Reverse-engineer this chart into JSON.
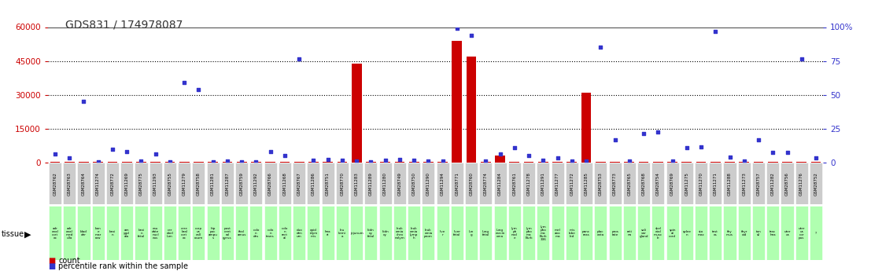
{
  "title": "GDS831 / 174978087",
  "samples": [
    "GSM28762",
    "GSM28763",
    "GSM28764",
    "GSM11274",
    "GSM28772",
    "GSM11269",
    "GSM28775",
    "GSM11293",
    "GSM28755",
    "GSM11279",
    "GSM28758",
    "GSM11281",
    "GSM11287",
    "GSM28759",
    "GSM11292",
    "GSM28766",
    "GSM11268",
    "GSM28767",
    "GSM11286",
    "GSM28751",
    "GSM28770",
    "GSM11283",
    "GSM11289",
    "GSM11280",
    "GSM28749",
    "GSM28750",
    "GSM11290",
    "GSM11294",
    "GSM28771",
    "GSM28760",
    "GSM28774",
    "GSM11284",
    "GSM28761",
    "GSM11278",
    "GSM11291",
    "GSM11277",
    "GSM11272",
    "GSM11285",
    "GSM28753",
    "GSM28773",
    "GSM28765",
    "GSM28768",
    "GSM28754",
    "GSM28769",
    "GSM11275",
    "GSM11270",
    "GSM11271",
    "GSM11288",
    "GSM11273",
    "GSM28757",
    "GSM11282",
    "GSM28756",
    "GSM11276",
    "GSM28752"
  ],
  "tissues": [
    "adr\nenal\ncort\nex",
    "adr\nenal\nmed\nulla",
    "blad\nder",
    "bon\ne\nmar\nrow",
    "brai\nn",
    "am\nygd\nala",
    "brai\nn\nfetal",
    "cau\ndate\nnucl\neus",
    "cer\nebel\nlum",
    "cere\nbral\ncort\nex",
    "corp\nus\ncall\nosum",
    "hip\npoc\nampu\ns",
    "post\ncent\nral\ngyrus",
    "thal\namus",
    "colo\nn\ndes",
    "colo\nn\ntrans",
    "colo\nn\nrect\nal",
    "duo\nden\num",
    "epid\nidym\nmis",
    "hea\nrt",
    "leu\nkemi\na",
    "jejunum",
    "kidn\ney\nfetal",
    "kidn\ney",
    "leuk\nemia\nchro\nnolym",
    "leuk\nemia\nlymp\nh",
    "leuk\nemia\nprom",
    "live\nr",
    "liver\nfetal",
    "lun\ng",
    "lung\nfetal",
    "lung\ncarcin\noma",
    "lym\nph\nnod\ne",
    "lym\npho\nma\nBurk",
    "lym\npho\nma\nBurk\n336",
    "mel\nano\nma",
    "mis\nlabe\nled",
    "panc\nreas",
    "plac\nenta",
    "pros\ntate",
    "reti\nna",
    "sali\nvar\ngland",
    "skel\netal\nmusc\nle",
    "spin\nal\ncord",
    "splee\nn",
    "sto\nmac",
    "test\nes",
    "thy\nmus",
    "thyr\noid",
    "ton\nsil",
    "trac\nhea",
    "uter\nus",
    "uter\nus\ncor\npus",
    "?"
  ],
  "counts": [
    200,
    200,
    200,
    200,
    200,
    200,
    200,
    200,
    200,
    200,
    200,
    200,
    200,
    200,
    200,
    200,
    200,
    200,
    200,
    200,
    200,
    44000,
    200,
    200,
    200,
    200,
    200,
    200,
    54000,
    47000,
    200,
    3000,
    200,
    200,
    200,
    200,
    200,
    31000,
    200,
    200,
    200,
    200,
    200,
    200,
    200,
    200,
    200,
    200,
    200,
    200,
    200,
    200,
    200,
    200
  ],
  "pct_raw": [
    4000,
    2000,
    27000,
    500,
    6000,
    5000,
    800,
    4000,
    200,
    35500,
    32500,
    400,
    600,
    400,
    500,
    4800,
    3200,
    46000,
    1000,
    1500,
    1000,
    600,
    400,
    1000,
    1400,
    1000,
    800,
    600,
    59500,
    56500,
    600,
    4000,
    6500,
    3200,
    1200,
    2000,
    800,
    700,
    51000,
    10000,
    600,
    13000,
    13500,
    600,
    6500,
    7000,
    58000,
    2500,
    700,
    10000,
    4500,
    4500,
    46000,
    2000
  ],
  "ylim": [
    0,
    60000
  ],
  "yticks_left": [
    0,
    15000,
    30000,
    45000,
    60000
  ],
  "ytick_labels_left": [
    "0",
    "15000",
    "30000",
    "45000",
    "60000"
  ],
  "yticks_right_pct": [
    0,
    25,
    50,
    75,
    100
  ],
  "bar_color": "#cc0000",
  "dot_color": "#3333cc",
  "axis_color_left": "#cc0000",
  "axis_color_right": "#3333cc",
  "bg_color": "#ffffff",
  "sample_box_color": "#cccccc",
  "tissue_box_color": "#b0ffb0",
  "legend_count_label": "count",
  "legend_pct_label": "percentile rank within the sample"
}
